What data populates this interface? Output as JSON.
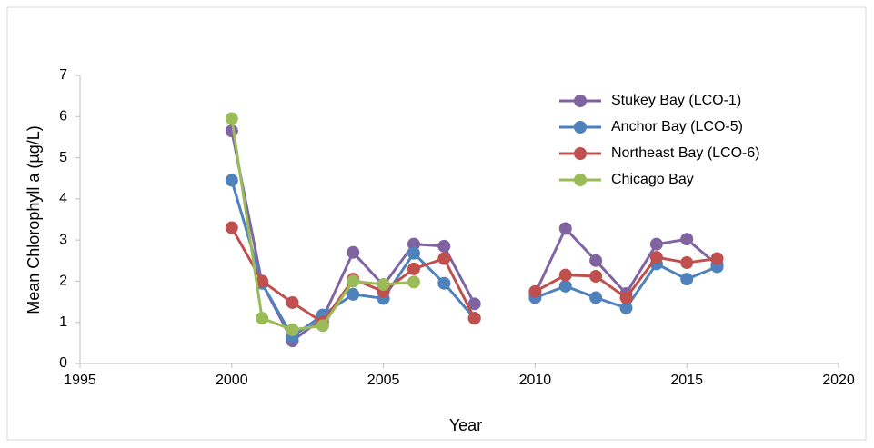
{
  "chart_data": {
    "type": "line",
    "x_label": "Year",
    "y_label": "Mean Chlorophyll a (µg/L)",
    "x": [
      2000,
      2001,
      2002,
      2003,
      2004,
      2005,
      2006,
      2007,
      2008,
      2009,
      2010,
      2011,
      2012,
      2013,
      2014,
      2015,
      2016
    ],
    "series": [
      {
        "name": "Stukey Bay (LCO-1)",
        "color": "#8064a2",
        "values": [
          5.65,
          1.95,
          0.55,
          1.1,
          2.7,
          1.9,
          2.9,
          2.85,
          1.45,
          null,
          1.7,
          3.28,
          2.5,
          1.7,
          2.9,
          3.02,
          2.4
        ]
      },
      {
        "name": "Anchor Bay (LCO-5)",
        "color": "#4f81bd",
        "values": [
          4.45,
          1.95,
          0.65,
          1.18,
          1.68,
          1.58,
          2.68,
          1.95,
          1.1,
          null,
          1.6,
          1.88,
          1.6,
          1.35,
          2.42,
          2.05,
          2.35
        ]
      },
      {
        "name": "Northeast Bay (LCO-6)",
        "color": "#c0504d",
        "values": [
          3.3,
          2.0,
          1.48,
          1.0,
          2.05,
          1.75,
          2.3,
          2.55,
          1.1,
          null,
          1.75,
          2.15,
          2.12,
          1.6,
          2.58,
          2.45,
          2.55
        ]
      },
      {
        "name": "Chicago Bay",
        "color": "#9bbb59",
        "values": [
          5.95,
          1.1,
          0.82,
          0.92,
          2.0,
          1.92,
          1.98,
          null,
          null,
          null,
          null,
          null,
          null,
          null,
          null,
          null,
          null
        ]
      }
    ],
    "xlim": [
      1995,
      2020
    ],
    "xticks": [
      1995,
      2000,
      2005,
      2010,
      2015,
      2020
    ],
    "ylim": [
      0,
      7
    ],
    "yticks": [
      0,
      1,
      2,
      3,
      4,
      5,
      6,
      7
    ],
    "grid": false,
    "legend": "upper right"
  }
}
